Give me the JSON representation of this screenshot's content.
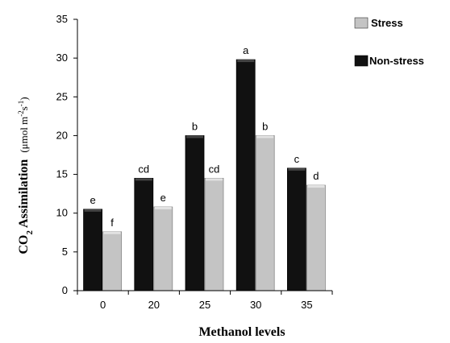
{
  "chart_data": {
    "type": "bar",
    "categories": [
      "0",
      "20",
      "25",
      "30",
      "35"
    ],
    "series": [
      {
        "name": "Non-stress",
        "values": [
          10.5,
          14.5,
          20.0,
          29.8,
          15.8
        ],
        "letters": [
          "e",
          "cd",
          "b",
          "a",
          "c"
        ],
        "color": "#111111"
      },
      {
        "name": "Stress",
        "values": [
          7.6,
          10.8,
          14.5,
          20.0,
          13.6
        ],
        "letters": [
          "f",
          "e",
          "cd",
          "b",
          "d"
        ],
        "color": "#c4c4c4"
      }
    ],
    "ylim": [
      0,
      35
    ],
    "yticks": [
      "0",
      "5",
      "10",
      "15",
      "20",
      "25",
      "30",
      "35"
    ],
    "xlabel": "Methanol levels",
    "ylabel": {
      "main": "CO",
      "sub": "2",
      "rest": " Assimilation",
      "unit": "(μmol m",
      "unit_sup1": "-2",
      "unit_mid": "s",
      "unit_sup2": "-1",
      "unit_end": ")"
    },
    "legend": {
      "position": "top-right",
      "order": [
        "Stress",
        "Non-stress"
      ]
    }
  }
}
